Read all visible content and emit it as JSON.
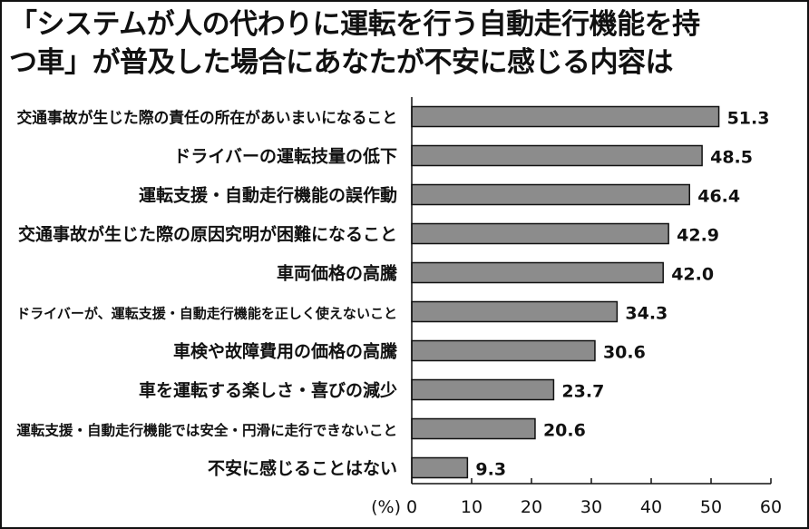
{
  "title_lines": [
    "「システムが人の代わりに運転を行う自動走行機能を持",
    "つ車」が普及した場合にあなたが不安に感じる内容は"
  ],
  "chart_data": {
    "type": "bar",
    "orientation": "horizontal",
    "title": "「システムが人の代わりに運転を行う自動走行機能を持つ車」が普及した場合にあなたが不安に感じる内容は",
    "categories": [
      "交通事故が生じた際の責任の所在があいまいになること",
      "ドライバーの運転技量の低下",
      "運転支援・自動走行機能の誤作動",
      "交通事故が生じた際の原因究明が困難になること",
      "車両価格の高騰",
      "ドライバーが、運転支援・自動走行機能を正しく使えないこと",
      "車検や故障費用の価格の高騰",
      "車を運転する楽しさ・喜びの減少",
      "運転支援・自動走行機能では安全・円滑に走行できないこと",
      "不安に感じることはない"
    ],
    "values": [
      51.3,
      48.5,
      46.4,
      42.9,
      42.0,
      34.3,
      30.6,
      23.7,
      20.6,
      9.3
    ],
    "value_labels": [
      "51.3",
      "48.5",
      "46.4",
      "42.9",
      "42.0",
      "34.3",
      "30.6",
      "23.7",
      "20.6",
      "9.3"
    ],
    "xlim": [
      0,
      60
    ],
    "ticks": [
      "0",
      "10",
      "20",
      "30",
      "40",
      "50",
      "60"
    ],
    "tick_values": [
      0,
      10,
      20,
      30,
      40,
      50,
      60
    ],
    "unit_label": "(%)",
    "grid": false,
    "colors": {
      "bar_fill": "#8c8c8c",
      "bar_stroke": "#111111",
      "axis": "#111111",
      "text": "#111111"
    }
  }
}
